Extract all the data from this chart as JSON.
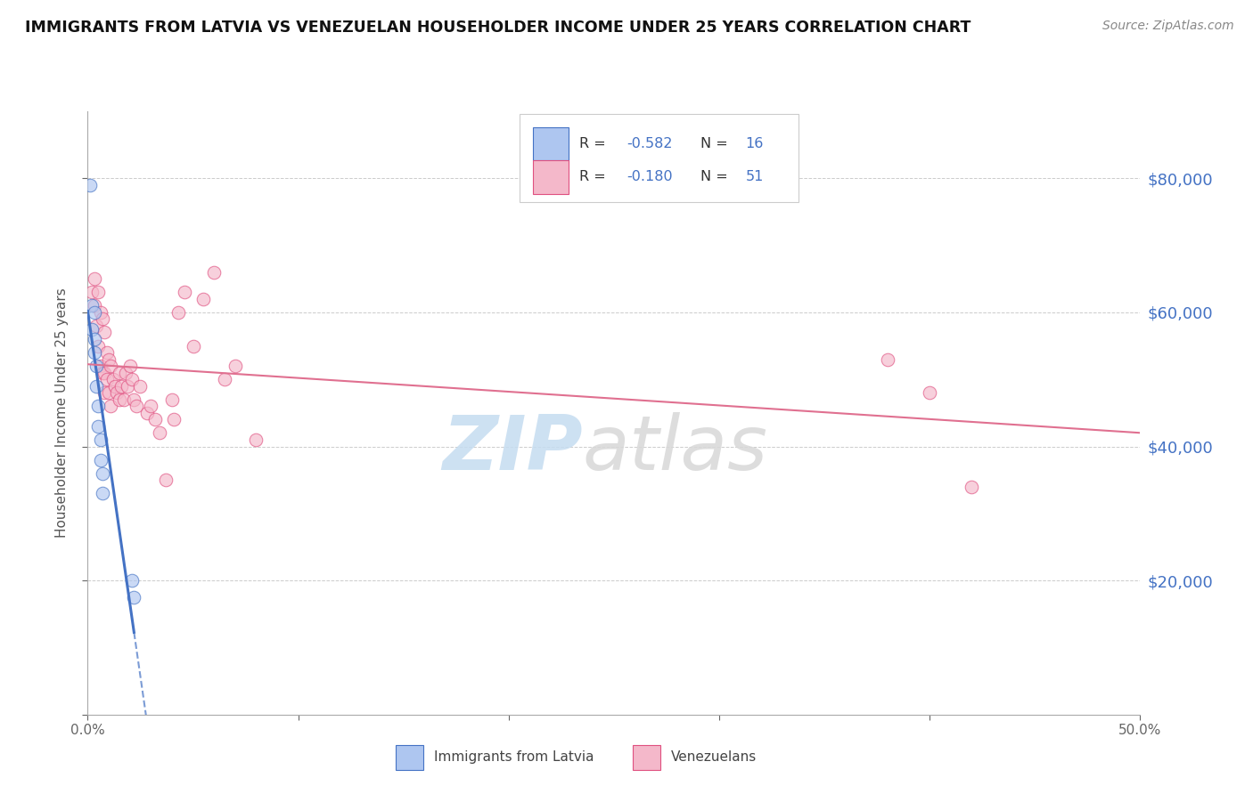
{
  "title": "IMMIGRANTS FROM LATVIA VS VENEZUELAN HOUSEHOLDER INCOME UNDER 25 YEARS CORRELATION CHART",
  "source": "Source: ZipAtlas.com",
  "ylabel": "Householder Income Under 25 years",
  "watermark_zip": "ZIP",
  "watermark_atlas": "atlas",
  "xlim": [
    0,
    0.5
  ],
  "ylim": [
    0,
    90000
  ],
  "xtick_positions": [
    0.0,
    0.1,
    0.2,
    0.3,
    0.4,
    0.5
  ],
  "xtick_labels": [
    "0.0%",
    "",
    "",
    "",
    "",
    "50.0%"
  ],
  "ytick_values": [
    0,
    20000,
    40000,
    60000,
    80000
  ],
  "right_ytick_labels": [
    "$80,000",
    "$60,000",
    "$40,000",
    "$20,000"
  ],
  "right_ytick_values": [
    80000,
    60000,
    40000,
    20000
  ],
  "legend_r1": "-0.582",
  "legend_n1": "16",
  "legend_r2": "-0.180",
  "legend_n2": "51",
  "legend_label1": "Immigrants from Latvia",
  "legend_label2": "Venezuelans",
  "latvia_x": [
    0.001,
    0.002,
    0.002,
    0.003,
    0.003,
    0.003,
    0.004,
    0.004,
    0.005,
    0.005,
    0.006,
    0.006,
    0.007,
    0.007,
    0.021,
    0.022
  ],
  "latvia_y": [
    79000,
    61000,
    57500,
    60000,
    56000,
    54000,
    52000,
    49000,
    46000,
    43000,
    41000,
    38000,
    36000,
    33000,
    20000,
    17500
  ],
  "venezuelan_x": [
    0.002,
    0.003,
    0.003,
    0.004,
    0.005,
    0.005,
    0.006,
    0.006,
    0.007,
    0.007,
    0.008,
    0.008,
    0.008,
    0.009,
    0.009,
    0.01,
    0.01,
    0.011,
    0.011,
    0.012,
    0.013,
    0.014,
    0.015,
    0.015,
    0.016,
    0.017,
    0.018,
    0.019,
    0.02,
    0.021,
    0.022,
    0.023,
    0.025,
    0.028,
    0.03,
    0.032,
    0.034,
    0.037,
    0.04,
    0.041,
    0.043,
    0.046,
    0.05,
    0.055,
    0.06,
    0.065,
    0.07,
    0.08,
    0.38,
    0.4,
    0.42
  ],
  "venezuelan_y": [
    63000,
    65000,
    61000,
    58000,
    63000,
    55000,
    60000,
    52000,
    59000,
    51000,
    57000,
    51000,
    48000,
    54000,
    50000,
    53000,
    48000,
    52000,
    46000,
    50000,
    49000,
    48000,
    51000,
    47000,
    49000,
    47000,
    51000,
    49000,
    52000,
    50000,
    47000,
    46000,
    49000,
    45000,
    46000,
    44000,
    42000,
    35000,
    47000,
    44000,
    60000,
    63000,
    55000,
    62000,
    66000,
    50000,
    52000,
    41000,
    53000,
    48000,
    34000
  ],
  "latvia_fill_color": "#aec6f0",
  "latvia_edge_color": "#4472c4",
  "venezuelan_fill_color": "#f4b8ca",
  "venezuelan_edge_color": "#e05080",
  "latvia_line_color": "#4472c4",
  "venezuelan_line_color": "#e07090",
  "background_color": "#ffffff",
  "grid_color": "#cccccc",
  "title_color": "#111111",
  "right_label_color": "#4472c4",
  "axis_color": "#aaaaaa",
  "marker_size": 110,
  "marker_alpha": 0.65,
  "legend_r_color": "#4472c4",
  "legend_box_edge": "#cccccc"
}
